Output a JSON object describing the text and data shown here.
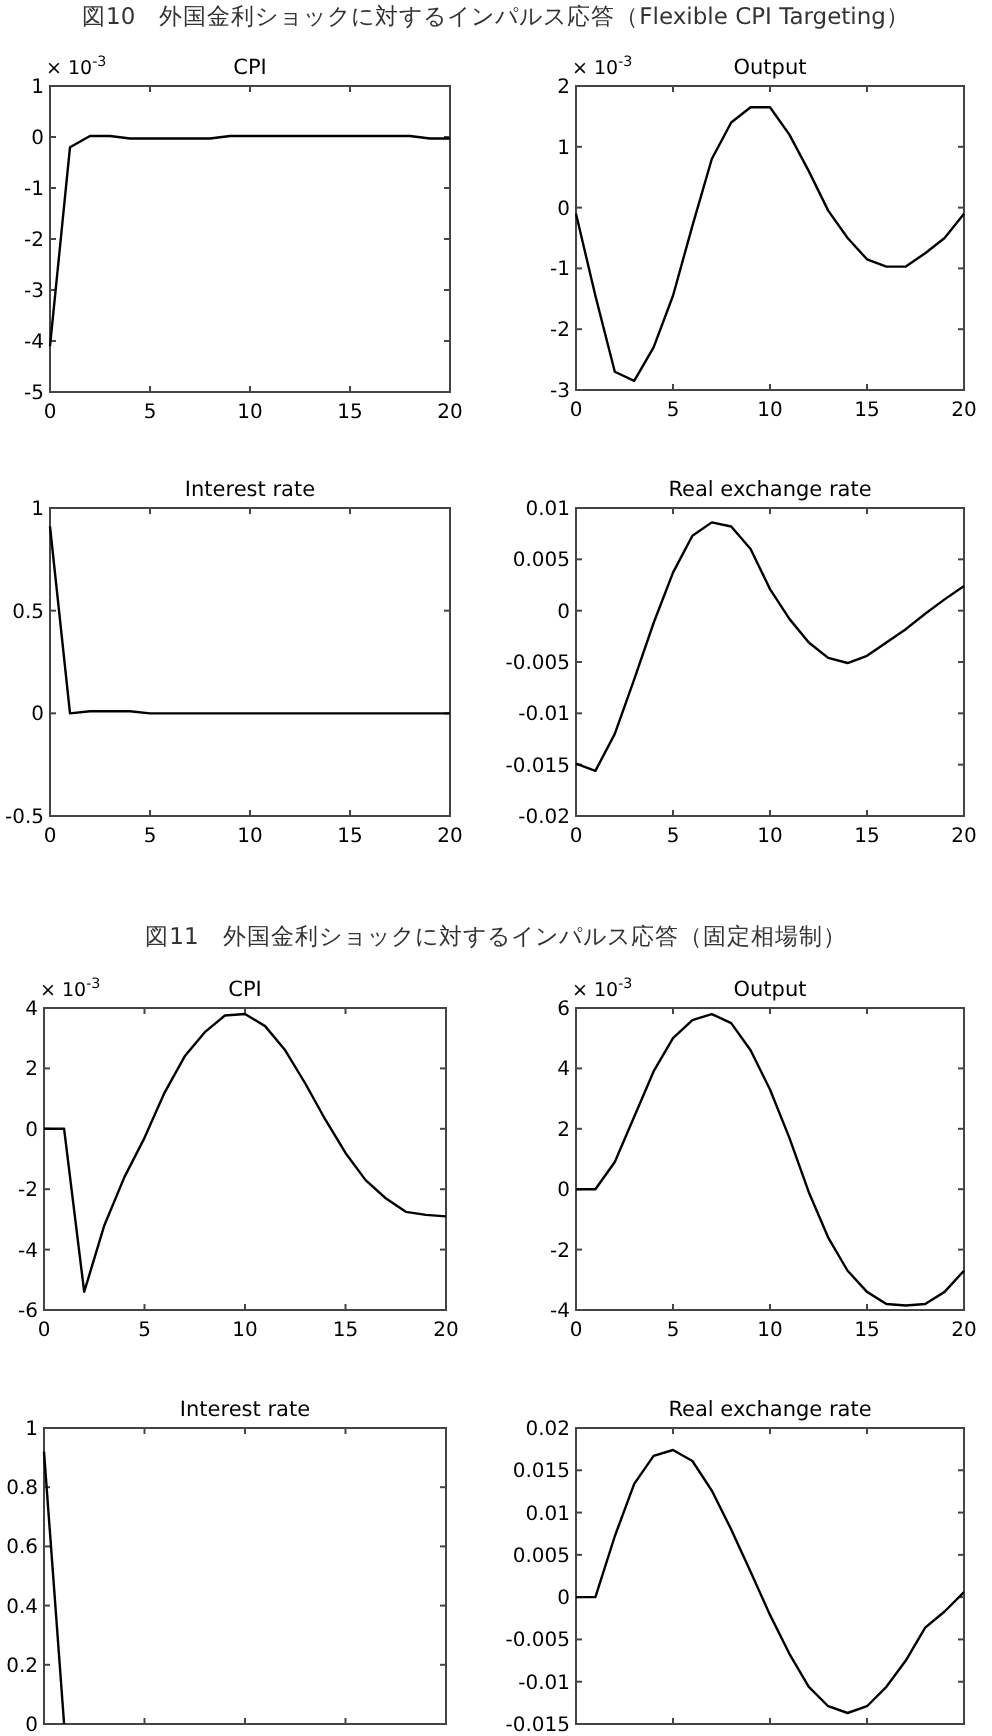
{
  "chart_data": [
    {
      "type": "line",
      "title": "CPI",
      "ylabel": "× 10$^{-3}$",
      "annotations": [
        "図10　外国金利ショックに対するインパルス応答（Flexible CPI Targeting）"
      ],
      "x": [
        0,
        1,
        2,
        3,
        4,
        5,
        6,
        7,
        8,
        9,
        10,
        11,
        12,
        13,
        14,
        15,
        16,
        17,
        18,
        19,
        20
      ],
      "xlim": [
        0,
        20
      ],
      "xticks": [
        0,
        5,
        10,
        15,
        20
      ],
      "ylim": [
        -5,
        1
      ],
      "yticks": [
        -5,
        -4,
        -3,
        -2,
        -1,
        0,
        1
      ],
      "series": [
        {
          "color": "#000000",
          "values": [
            -4.1,
            -0.2,
            0.02,
            0.02,
            -0.03,
            -0.03,
            -0.03,
            -0.03,
            -0.03,
            0.02,
            0.02,
            0.02,
            0.02,
            0.02,
            0.02,
            0.02,
            0.02,
            0.02,
            0.02,
            -0.03,
            -0.03
          ]
        }
      ]
    },
    {
      "type": "line",
      "title": "Output",
      "ylabel": "× 10$^{-3}$",
      "x": [
        0,
        1,
        2,
        3,
        4,
        5,
        6,
        7,
        8,
        9,
        10,
        11,
        12,
        13,
        14,
        15,
        16,
        17,
        18,
        19,
        20
      ],
      "xlim": [
        0,
        20
      ],
      "xticks": [
        0,
        5,
        10,
        15,
        20
      ],
      "ylim": [
        -3,
        2
      ],
      "yticks": [
        -3,
        -2,
        -1,
        0,
        1,
        2
      ],
      "series": [
        {
          "color": "#000000",
          "values": [
            -0.1,
            -1.45,
            -2.7,
            -2.85,
            -2.3,
            -1.45,
            -0.3,
            0.8,
            1.4,
            1.65,
            1.65,
            1.2,
            0.6,
            -0.05,
            -0.5,
            -0.85,
            -0.97,
            -0.97,
            -0.75,
            -0.5,
            -0.1
          ]
        }
      ]
    },
    {
      "type": "line",
      "title": "Interest rate",
      "x": [
        0,
        1,
        2,
        3,
        4,
        5,
        6,
        7,
        8,
        9,
        10,
        11,
        12,
        13,
        14,
        15,
        16,
        17,
        18,
        19,
        20
      ],
      "xlim": [
        0,
        20
      ],
      "xticks": [
        0,
        5,
        10,
        15,
        20
      ],
      "ylim": [
        -0.5,
        1
      ],
      "yticks": [
        -0.5,
        0,
        0.5,
        1
      ],
      "series": [
        {
          "color": "#000000",
          "values": [
            0.91,
            0,
            0.01,
            0.01,
            0.01,
            0,
            0,
            0,
            0,
            0,
            0,
            0,
            0,
            0,
            0,
            0,
            0,
            0,
            0,
            0,
            0
          ]
        }
      ]
    },
    {
      "type": "line",
      "title": "Real exchange rate",
      "x": [
        0,
        1,
        2,
        3,
        4,
        5,
        6,
        7,
        8,
        9,
        10,
        11,
        12,
        13,
        14,
        15,
        16,
        17,
        18,
        19,
        20
      ],
      "xlim": [
        0,
        20
      ],
      "xticks": [
        0,
        5,
        10,
        15,
        20
      ],
      "ylim": [
        -0.02,
        0.01
      ],
      "yticks": [
        -0.02,
        -0.015,
        -0.01,
        -0.005,
        0,
        0.005,
        0.01
      ],
      "series": [
        {
          "color": "#000000",
          "values": [
            -0.0149,
            -0.0156,
            -0.012,
            -0.0067,
            -0.0012,
            0.0037,
            0.0073,
            0.0086,
            0.0082,
            0.006,
            0.0021,
            -0.0008,
            -0.0031,
            -0.0046,
            -0.0051,
            -0.0044,
            -0.0031,
            -0.0018,
            -0.0003,
            0.0011,
            0.0024
          ]
        }
      ]
    },
    {
      "type": "line",
      "title": "CPI",
      "ylabel": "× 10$^{-3}$",
      "annotations": [
        "図11　外国金利ショックに対するインパルス応答（固定相場制）"
      ],
      "x": [
        0,
        1,
        2,
        3,
        4,
        5,
        6,
        7,
        8,
        9,
        10,
        11,
        12,
        13,
        14,
        15,
        16,
        17,
        18,
        19,
        20
      ],
      "xlim": [
        0,
        20
      ],
      "xticks": [
        0,
        5,
        10,
        15,
        20
      ],
      "ylim": [
        -6,
        4
      ],
      "yticks": [
        -6,
        -4,
        -2,
        0,
        2,
        4
      ],
      "series": [
        {
          "color": "#000000",
          "values": [
            0,
            0,
            -5.4,
            -3.2,
            -1.6,
            -0.3,
            1.2,
            2.4,
            3.2,
            3.75,
            3.8,
            3.4,
            2.6,
            1.5,
            0.3,
            -0.8,
            -1.7,
            -2.3,
            -2.75,
            -2.85,
            -2.9
          ]
        }
      ]
    },
    {
      "type": "line",
      "title": "Output",
      "ylabel": "× 10$^{-3}$",
      "x": [
        0,
        1,
        2,
        3,
        4,
        5,
        6,
        7,
        8,
        9,
        10,
        11,
        12,
        13,
        14,
        15,
        16,
        17,
        18,
        19,
        20
      ],
      "xlim": [
        0,
        20
      ],
      "xticks": [
        0,
        5,
        10,
        15,
        20
      ],
      "ylim": [
        -4,
        6
      ],
      "yticks": [
        -4,
        -2,
        0,
        2,
        4,
        6
      ],
      "series": [
        {
          "color": "#000000",
          "values": [
            0,
            0,
            0.9,
            2.4,
            3.9,
            5.0,
            5.6,
            5.8,
            5.5,
            4.6,
            3.3,
            1.7,
            -0.1,
            -1.6,
            -2.7,
            -3.4,
            -3.8,
            -3.85,
            -3.8,
            -3.4,
            -2.7
          ]
        }
      ]
    },
    {
      "type": "line",
      "title": "Interest rate",
      "x": [
        0,
        1
      ],
      "xlim": [
        0,
        20
      ],
      "xticks": [
        0,
        5,
        10,
        15,
        20
      ],
      "ylim": [
        0,
        1
      ],
      "yticks": [
        0,
        0.2,
        0.4,
        0.6,
        0.8,
        1
      ],
      "tick_labels": "y",
      "series": [
        {
          "color": "#000000",
          "values": [
            0.92,
            0
          ]
        }
      ]
    },
    {
      "type": "line",
      "title": "Real exchange rate",
      "x": [
        0,
        1,
        2,
        3,
        4,
        5,
        6,
        7,
        8,
        9,
        10,
        11,
        12,
        13,
        14,
        15,
        16,
        17,
        18,
        19,
        20
      ],
      "xlim": [
        0,
        20
      ],
      "xticks": [
        0,
        5,
        10,
        15,
        20
      ],
      "ylim": [
        -0.015,
        0.02
      ],
      "yticks": [
        -0.015,
        -0.01,
        -0.005,
        0,
        0.005,
        0.01,
        0.015,
        0.02
      ],
      "tick_labels": "y",
      "series": [
        {
          "color": "#000000",
          "values": [
            0,
            0,
            0.0072,
            0.0134,
            0.0167,
            0.0174,
            0.0161,
            0.0126,
            0.008,
            0.003,
            -0.0021,
            -0.0067,
            -0.0106,
            -0.0129,
            -0.0137,
            -0.0129,
            -0.0106,
            -0.0075,
            -0.0036,
            -0.0017,
            0.0006
          ]
        }
      ]
    }
  ]
}
